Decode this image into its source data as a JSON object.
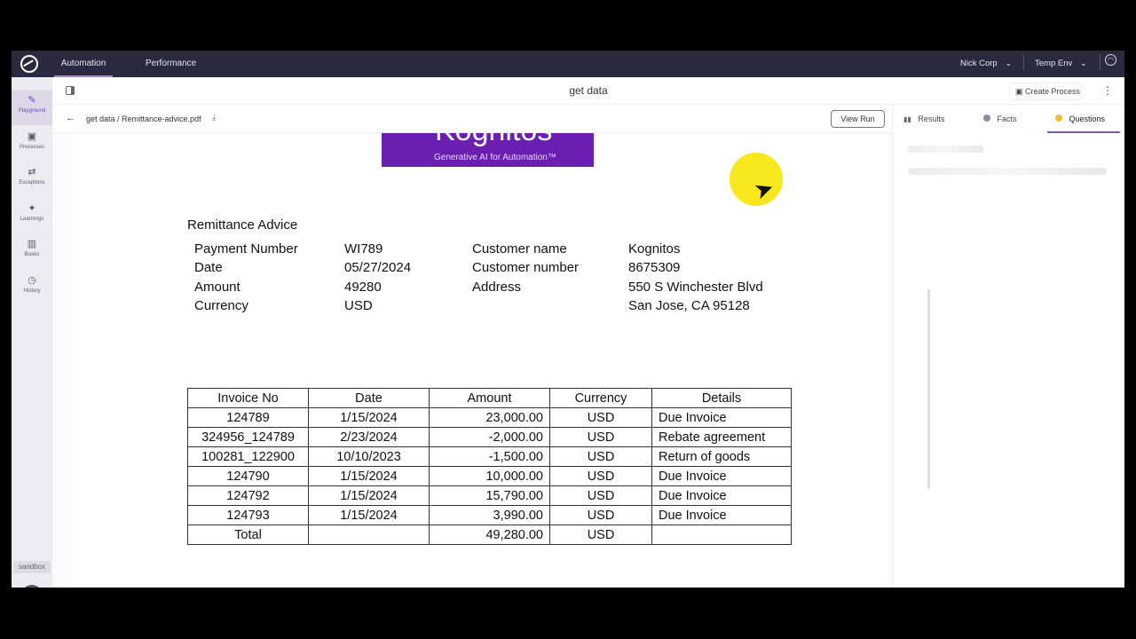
{
  "topnav": {
    "tabs": [
      "Automation",
      "Performance"
    ],
    "org": "Nick Corp",
    "env": "Temp Env"
  },
  "sidebar": {
    "items": [
      {
        "label": "Playground",
        "icon": "pencil-square-icon"
      },
      {
        "label": "Processes",
        "icon": "process-icon"
      },
      {
        "label": "Exceptions",
        "icon": "exceptions-icon"
      },
      {
        "label": "Learnings",
        "icon": "sparkle-icon"
      },
      {
        "label": "Books",
        "icon": "books-icon"
      },
      {
        "label": "History",
        "icon": "clock-icon"
      }
    ],
    "sandbox": "sandbox"
  },
  "header": {
    "title": "get data",
    "create_process": "Create Process"
  },
  "breadcrumb": {
    "path": "get data / Remittance-advice.pdf",
    "view_run": "View Run"
  },
  "right_panel": {
    "tabs": [
      "Results",
      "Facts",
      "Questions"
    ],
    "active": "Questions",
    "accent": "#7b5aa6"
  },
  "document": {
    "logo_tagline": "Generative AI for Automation™",
    "logo_text": "Kognitos",
    "heading": "Remittance Advice",
    "left_fields": [
      [
        "Payment Number",
        "WI789"
      ],
      [
        "Date",
        "05/27/2024"
      ],
      [
        "Amount",
        "49280"
      ],
      [
        "Currency",
        "USD"
      ]
    ],
    "right_fields": [
      [
        "Customer name",
        "Kognitos"
      ],
      [
        "Customer number",
        "8675309"
      ],
      [
        "Address",
        "550 S Winchester Blvd"
      ],
      [
        "",
        "San Jose, CA 95128"
      ]
    ],
    "table": {
      "headers": [
        "Invoice No",
        "Date",
        "Amount",
        "Currency",
        "Details"
      ],
      "rows": [
        [
          "124789",
          "1/15/2024",
          "23,000.00",
          "USD",
          "Due Invoice"
        ],
        [
          "324956_124789",
          "2/23/2024",
          "-2,000.00",
          "USD",
          "Rebate agreement"
        ],
        [
          "100281_122900",
          "10/10/2023",
          "-1,500.00",
          "USD",
          "Return of goods"
        ],
        [
          "124790",
          "1/15/2024",
          "10,000.00",
          "USD",
          "Due Invoice"
        ],
        [
          "124792",
          "1/15/2024",
          "15,790.00",
          "USD",
          "Due Invoice"
        ],
        [
          "124793",
          "1/15/2024",
          "3,990.00",
          "USD",
          "Due Invoice"
        ],
        [
          "Total",
          "",
          "49,280.00",
          "USD",
          ""
        ]
      ]
    }
  }
}
